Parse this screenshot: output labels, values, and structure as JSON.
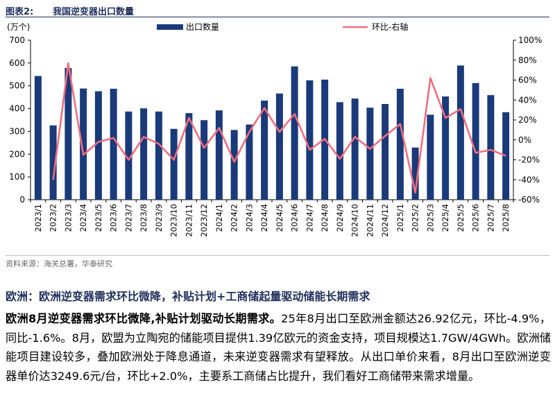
{
  "figure": {
    "label": "图表2:",
    "title": "我国逆变器出口数量"
  },
  "chart_data": {
    "type": "bar+line",
    "y_unit": "(万个)",
    "categories": [
      "2023/1",
      "2023/2",
      "2023/3",
      "2023/4",
      "2023/5",
      "2023/6",
      "2023/7",
      "2023/8",
      "2023/9",
      "2023/10",
      "2023/11",
      "2023/12",
      "2024/1",
      "2024/2",
      "2024/3",
      "2024/4",
      "2024/5",
      "2024/6",
      "2024/7",
      "2024/8",
      "2024/9",
      "2024/10",
      "2024/11",
      "2024/12",
      "2025/1",
      "2025/2",
      "2025/3",
      "2025/4",
      "2025/5",
      "2025/6",
      "2025/7",
      "2025/8"
    ],
    "series": [
      {
        "name": "出口数量",
        "type": "bar",
        "axis": "left",
        "color": "#1a3a7a",
        "values": [
          543,
          326,
          578,
          488,
          476,
          487,
          387,
          401,
          387,
          311,
          380,
          349,
          392,
          306,
          330,
          435,
          466,
          585,
          524,
          527,
          428,
          444,
          404,
          420,
          487,
          229,
          373,
          453,
          589,
          512,
          459,
          384
        ]
      },
      {
        "name": "环比-右轴",
        "type": "line",
        "axis": "right",
        "color": "#f26d7d",
        "values": [
          null,
          -40,
          77,
          -15,
          -2,
          2,
          -20,
          3,
          -4,
          -20,
          22,
          -8,
          12,
          -22,
          8,
          32,
          8,
          26,
          -10,
          1,
          -19,
          3,
          -9,
          4,
          16,
          -53,
          62,
          22,
          31,
          -13,
          -10,
          -16
        ]
      }
    ],
    "y_left": {
      "min": 0,
      "max": 700,
      "ticks": [
        "0",
        "100",
        "200",
        "300",
        "400",
        "500",
        "600",
        "700"
      ]
    },
    "y_right": {
      "min": -60,
      "max": 100,
      "ticks": [
        "-60%",
        "-40%",
        "-20%",
        "0%",
        "20%",
        "40%",
        "60%",
        "80%",
        "100%"
      ]
    },
    "legend_position": "top"
  },
  "source": "资料来源：海关总署，华泰研究",
  "section": {
    "title": "欧洲：欧洲逆变器需求环比微降，补贴计划+工商储起量驱动储能长期需求",
    "lead": "欧洲8月逆变器需求环比微降,补贴计划驱动长期需求。",
    "body": "25年8月出口至欧洲金额达26.92亿元，环比-4.9%，同比-1.6%。8月，欧盟为立陶宛的储能项目提供1.39亿欧元的资金支持，项目规模达1.7GW/4GWh。欧洲储能项目建设较多，叠加欧洲处于降息通道，未来逆变器需求有望释放。从出口单价来看，8月出口至欧洲逆变器单价达3249.6元/台，环比+2.0%，主要系工商储占比提升，我们看好工商储带来需求增量。"
  }
}
